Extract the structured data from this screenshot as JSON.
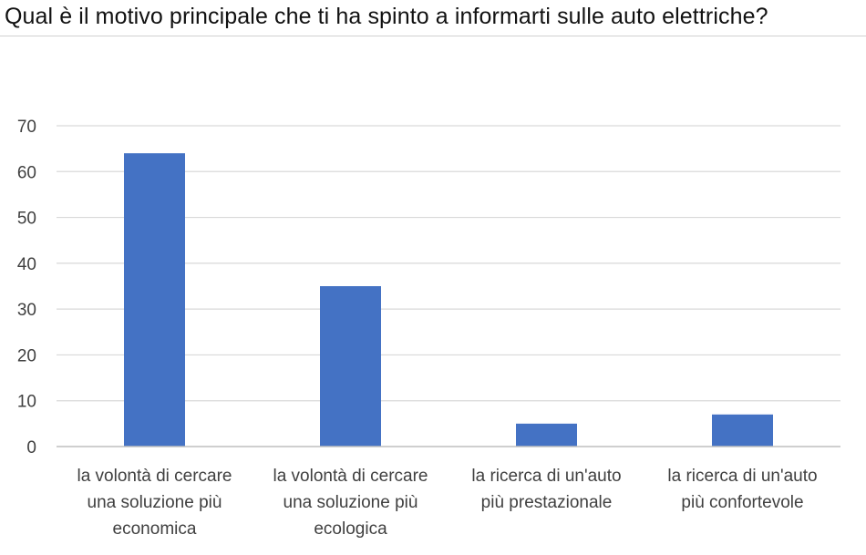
{
  "chart_data": {
    "type": "bar",
    "title": "Qual è il motivo principale che ti ha spinto a informarti sulle auto elettriche?",
    "xlabel": "",
    "ylabel": "",
    "categories": [
      [
        "la volontà di cercare",
        "una soluzione più",
        "economica"
      ],
      [
        "la volontà di cercare",
        "una soluzione più",
        "ecologica"
      ],
      [
        "la ricerca di un'auto",
        "più prestazionale"
      ],
      [
        "la ricerca di un'auto",
        "più confortevole"
      ]
    ],
    "values": [
      64,
      35,
      5,
      7
    ],
    "ylim": [
      0,
      70
    ],
    "yticks": [
      0,
      10,
      20,
      30,
      40,
      50,
      60,
      70
    ],
    "grid": true,
    "legend": "none",
    "colors": {
      "bar": "#4472C4",
      "grid": "#d9d9d9",
      "axis": "#bfbfbf"
    }
  }
}
